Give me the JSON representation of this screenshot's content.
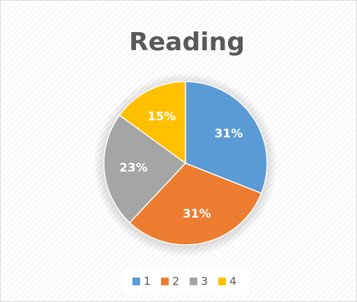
{
  "chart_data": {
    "type": "pie",
    "title": "Reading",
    "categories": [
      "1",
      "2",
      "3",
      "4"
    ],
    "values": [
      31,
      31,
      23,
      15
    ],
    "value_labels": [
      "31%",
      "31%",
      "23%",
      "15%"
    ],
    "colors": [
      "#5b9bd5",
      "#ed7d31",
      "#a5a5a5",
      "#ffc000"
    ],
    "legend": "bottom"
  }
}
